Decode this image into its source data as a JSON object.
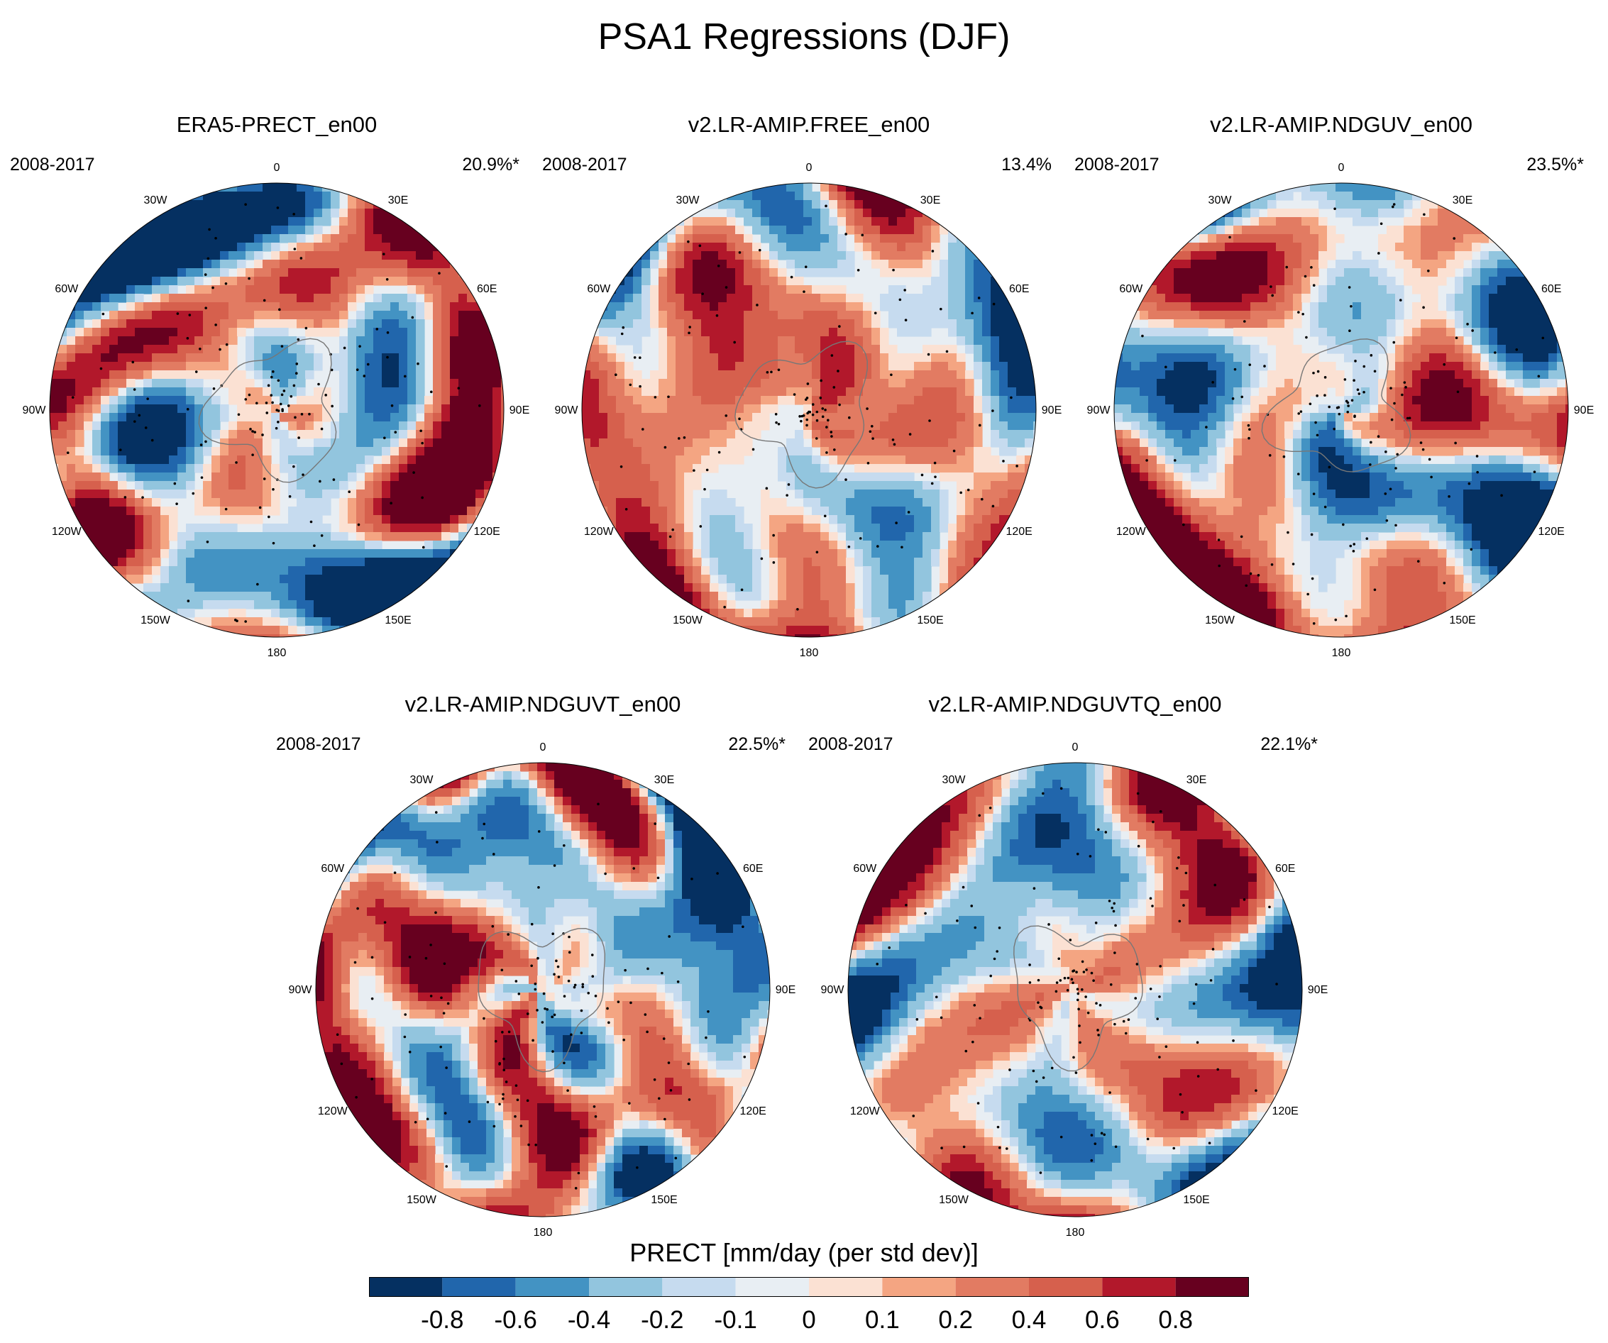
{
  "title": "PSA1 Regressions (DJF)",
  "panels": [
    {
      "title": "ERA5-PRECT_en00",
      "period": "2008-2017",
      "variance": "20.9%*",
      "seed": 11
    },
    {
      "title": "v2.LR-AMIP.FREE_en00",
      "period": "2008-2017",
      "variance": "13.4%",
      "seed": 23
    },
    {
      "title": "v2.LR-AMIP.NDGUV_en00",
      "period": "2008-2017",
      "variance": "23.5%*",
      "seed": 37
    },
    {
      "title": "v2.LR-AMIP.NDGUVT_en00",
      "period": "2008-2017",
      "variance": "22.5%*",
      "seed": 41
    },
    {
      "title": "v2.LR-AMIP.NDGUVTQ_en00",
      "period": "2008-2017",
      "variance": "22.1%*",
      "seed": 53
    }
  ],
  "longitude_labels": [
    "0",
    "30E",
    "60E",
    "90E",
    "120E",
    "150E",
    "180",
    "150W",
    "120W",
    "90W",
    "60W",
    "30W"
  ],
  "colorbar": {
    "title": "PRECT [mm/day (per std dev)]",
    "tick_labels": [
      "-0.8",
      "-0.6",
      "-0.4",
      "-0.2",
      "-0.1",
      "0",
      "0.1",
      "0.2",
      "0.4",
      "0.6",
      "0.8"
    ],
    "colors": [
      "#053061",
      "#2166ac",
      "#4393c3",
      "#92c5de",
      "#c6dbef",
      "#e8eef3",
      "#fbe1d3",
      "#f4a582",
      "#e27b62",
      "#d6604d",
      "#b2182b",
      "#67001f"
    ]
  }
}
